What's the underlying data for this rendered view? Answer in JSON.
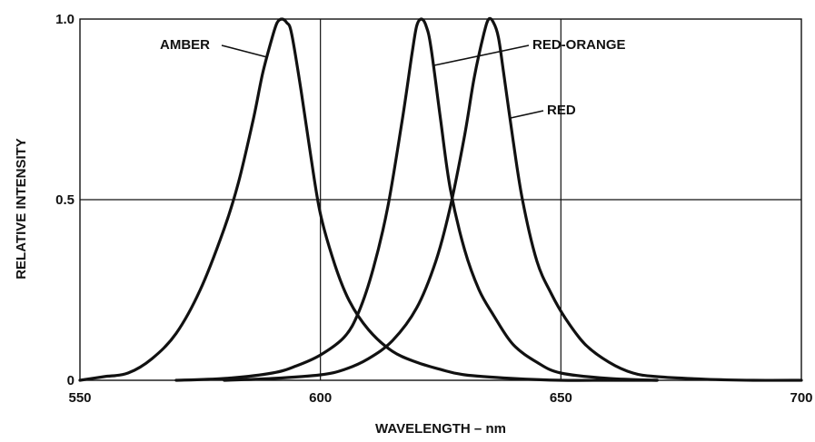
{
  "chart_data": {
    "type": "line",
    "xlabel": "WAVELENGTH – nm",
    "ylabel": "RELATIVE INTENSITY",
    "xlim": [
      550,
      700
    ],
    "ylim": [
      0,
      1.0
    ],
    "x_ticks": [
      550,
      600,
      650,
      700
    ],
    "x_tick_labels": [
      "550",
      "600",
      "650",
      "700"
    ],
    "y_ticks": [
      0,
      0.5,
      1.0
    ],
    "y_tick_labels": [
      "0",
      "0.5",
      "1.0"
    ],
    "grid": true,
    "legend": "none (curves labeled directly)",
    "colors": {
      "line": "#111111",
      "grid": "#111111",
      "background": "#ffffff"
    },
    "series": [
      {
        "name": "AMBER",
        "x": [
          550,
          555,
          560,
          565,
          570,
          575,
          580,
          583,
          586,
          588,
          590,
          591,
          592,
          593,
          594,
          596,
          598,
          600,
          603,
          606,
          610,
          615,
          620,
          625,
          630,
          640,
          650,
          660,
          670
        ],
        "y": [
          0.0,
          0.01,
          0.02,
          0.06,
          0.13,
          0.25,
          0.42,
          0.55,
          0.72,
          0.85,
          0.95,
          0.99,
          1.0,
          0.99,
          0.96,
          0.8,
          0.62,
          0.46,
          0.32,
          0.22,
          0.14,
          0.08,
          0.05,
          0.03,
          0.015,
          0.005,
          0.0,
          0.0,
          0.0
        ]
      },
      {
        "name": "RED-ORANGE",
        "x": [
          570,
          580,
          590,
          595,
          600,
          605,
          608,
          611,
          614,
          617,
          619,
          620,
          621,
          622,
          623,
          625,
          627,
          630,
          633,
          636,
          640,
          645,
          650,
          660,
          670
        ],
        "y": [
          0.0,
          0.005,
          0.02,
          0.04,
          0.07,
          0.12,
          0.19,
          0.31,
          0.48,
          0.72,
          0.9,
          0.98,
          1.0,
          0.98,
          0.92,
          0.72,
          0.53,
          0.36,
          0.25,
          0.18,
          0.1,
          0.05,
          0.02,
          0.005,
          0.0
        ]
      },
      {
        "name": "RED",
        "x": [
          580,
          590,
          600,
          605,
          610,
          615,
          620,
          624,
          627,
          630,
          632,
          634,
          635,
          636,
          637,
          638,
          640,
          642,
          645,
          648,
          651,
          655,
          660,
          665,
          670,
          680,
          690,
          700
        ],
        "y": [
          0.0,
          0.005,
          0.015,
          0.03,
          0.06,
          0.11,
          0.2,
          0.33,
          0.48,
          0.68,
          0.84,
          0.96,
          1.0,
          0.99,
          0.95,
          0.86,
          0.67,
          0.5,
          0.33,
          0.24,
          0.17,
          0.1,
          0.05,
          0.02,
          0.01,
          0.003,
          0.0,
          0.0
        ]
      }
    ]
  }
}
